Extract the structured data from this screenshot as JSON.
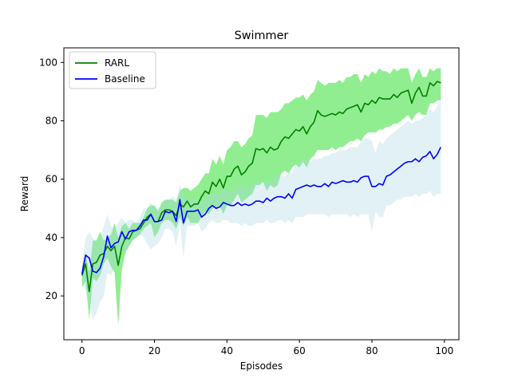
{
  "chart_data": {
    "type": "line",
    "title": "Swimmer",
    "xlabel": "Episodes",
    "ylabel": "Reward",
    "xlim": [
      -5,
      104
    ],
    "ylim": [
      5,
      105
    ],
    "xticks": [
      0,
      20,
      40,
      60,
      80,
      100
    ],
    "yticks": [
      20,
      40,
      60,
      80,
      100
    ],
    "grid": false,
    "legend_position": "top-left",
    "series": [
      {
        "name": "RARL",
        "color": "#008000",
        "band_color": "#90ee90",
        "x": [
          0,
          1,
          2,
          3,
          4,
          5,
          6,
          7,
          8,
          9,
          10,
          11,
          12,
          13,
          14,
          15,
          16,
          17,
          18,
          19,
          20,
          21,
          22,
          23,
          24,
          25,
          26,
          27,
          28,
          29,
          30,
          31,
          32,
          33,
          34,
          35,
          36,
          37,
          38,
          39,
          40,
          41,
          42,
          43,
          44,
          45,
          46,
          47,
          48,
          49,
          50,
          51,
          52,
          53,
          54,
          55,
          56,
          57,
          58,
          59,
          60,
          61,
          62,
          63,
          64,
          65,
          66,
          67,
          68,
          69,
          70,
          71,
          72,
          73,
          74,
          75,
          76,
          77,
          78,
          79,
          80,
          81,
          82,
          83,
          84,
          85,
          86,
          87,
          88,
          89,
          90,
          91,
          92,
          93,
          94,
          95,
          96,
          97,
          98,
          99
        ],
        "mean": [
          27,
          31,
          21.5,
          31,
          31.5,
          34,
          34.5,
          37,
          35.5,
          37,
          30.5,
          37,
          40,
          39.5,
          42,
          42.5,
          43,
          45,
          47,
          48,
          45.5,
          45.5,
          48.5,
          49.5,
          49.5,
          49,
          47.5,
          51.5,
          50.5,
          52.5,
          50.5,
          51.5,
          51.5,
          54,
          56,
          55,
          59,
          57.5,
          60,
          57,
          61,
          61,
          63.5,
          64.5,
          61.5,
          62.5,
          64.5,
          65.5,
          70.5,
          70,
          70.5,
          69,
          71,
          70,
          70.5,
          73,
          74.5,
          74,
          75.5,
          77,
          76.5,
          78,
          75.5,
          78,
          79.5,
          83.5,
          82,
          81.5,
          82,
          82.5,
          82,
          83,
          82.5,
          84,
          84.5,
          85,
          85.5,
          83,
          86,
          85.5,
          87,
          86,
          88,
          87.5,
          87.5,
          87.5,
          89,
          88,
          89.5,
          90,
          90.5,
          86,
          89.5,
          91.5,
          88.5,
          88.5,
          93,
          92,
          93.5,
          93
        ],
        "lower": [
          23,
          25,
          12,
          26,
          25,
          27,
          31,
          33,
          30,
          28,
          10,
          29,
          35,
          37,
          39,
          40,
          41,
          43,
          44,
          45,
          40,
          42,
          45,
          46,
          46,
          45,
          43,
          47,
          44,
          47,
          45,
          45,
          45,
          47,
          49,
          48,
          50,
          50,
          51,
          48,
          51,
          51,
          53,
          55,
          52,
          53,
          54,
          55,
          58,
          58,
          59,
          56,
          58,
          57,
          58,
          62,
          63,
          62,
          64,
          65,
          64,
          66,
          64,
          67,
          68,
          70,
          70,
          70,
          70,
          71,
          70,
          71,
          71,
          72,
          73,
          73,
          74,
          73,
          75,
          76,
          76,
          76,
          77,
          77,
          78,
          78,
          79,
          79,
          80,
          81,
          82,
          80,
          82,
          83,
          82,
          82,
          86,
          86,
          87,
          87
        ],
        "upper": [
          30,
          35,
          28,
          39,
          39,
          42,
          39,
          40,
          41,
          45,
          40,
          44,
          45,
          43,
          45,
          45,
          45,
          47,
          50,
          51,
          51,
          49,
          52,
          53,
          53,
          53,
          52,
          56,
          57,
          57,
          56,
          57,
          58,
          60,
          62,
          62,
          67,
          65,
          68,
          65,
          70,
          71,
          73,
          73,
          71,
          72,
          74,
          75,
          82,
          82,
          82,
          81,
          83,
          83,
          83,
          84,
          86,
          86,
          87,
          88,
          88,
          89,
          87,
          89,
          90,
          94,
          93,
          92,
          93,
          93,
          93,
          94,
          93,
          95,
          95,
          96,
          96,
          93,
          96,
          95,
          97,
          96,
          98,
          97,
          97,
          96,
          98,
          97,
          98,
          98,
          98,
          93,
          96,
          98,
          95,
          95,
          98,
          97,
          98,
          98
        ]
      },
      {
        "name": "Baseline",
        "color": "#0000ff",
        "band_color": "#add8e6",
        "x": [
          0,
          1,
          2,
          3,
          4,
          5,
          6,
          7,
          8,
          9,
          10,
          11,
          12,
          13,
          14,
          15,
          16,
          17,
          18,
          19,
          20,
          21,
          22,
          23,
          24,
          25,
          26,
          27,
          28,
          29,
          30,
          31,
          32,
          33,
          34,
          35,
          36,
          37,
          38,
          39,
          40,
          41,
          42,
          43,
          44,
          45,
          46,
          47,
          48,
          49,
          50,
          51,
          52,
          53,
          54,
          55,
          56,
          57,
          58,
          59,
          60,
          61,
          62,
          63,
          64,
          65,
          66,
          67,
          68,
          69,
          70,
          71,
          72,
          73,
          74,
          75,
          76,
          77,
          78,
          79,
          80,
          81,
          82,
          83,
          84,
          85,
          86,
          87,
          88,
          89,
          90,
          91,
          92,
          93,
          94,
          95,
          96,
          97,
          98,
          99
        ],
        "mean": [
          27.5,
          34,
          33,
          28.5,
          28,
          29.5,
          33.5,
          40.5,
          36.5,
          38,
          38.5,
          42,
          39.5,
          42,
          42.5,
          42.5,
          44,
          46,
          46,
          48,
          45.5,
          45.5,
          46,
          49,
          48.5,
          49,
          45.5,
          53,
          45,
          49,
          49,
          49,
          49.5,
          47,
          48,
          50,
          51,
          50,
          50.5,
          52,
          51.5,
          51,
          51,
          52,
          51,
          51.5,
          51,
          51.5,
          52.5,
          52.5,
          52,
          53.5,
          52.5,
          53.5,
          54,
          54,
          53.5,
          55,
          53.5,
          56.5,
          57,
          57.5,
          58,
          57.5,
          58,
          57.5,
          57.5,
          58.5,
          57.5,
          59,
          58.5,
          59,
          59.5,
          59,
          59,
          59.5,
          59,
          60.5,
          61,
          61,
          57.5,
          57.5,
          58.5,
          58,
          61,
          61.5,
          62.5,
          63.5,
          64.5,
          65.5,
          66,
          66,
          67,
          66,
          67.5,
          68,
          69.5,
          67,
          68.5,
          71
        ],
        "lower": [
          25,
          22,
          17,
          12,
          14,
          18,
          20,
          28,
          27,
          30,
          31,
          36,
          34,
          38,
          39,
          40,
          41,
          40,
          38,
          36,
          37,
          38,
          40,
          43,
          43,
          42,
          37,
          45,
          33,
          44,
          44,
          44,
          45,
          42,
          43,
          45,
          46,
          45,
          45,
          46,
          46,
          45,
          45,
          45,
          44,
          45,
          44,
          44,
          45,
          45,
          45,
          46,
          45,
          45,
          46,
          46,
          45,
          46,
          45,
          47,
          47,
          47,
          48,
          48,
          48,
          48,
          48,
          48,
          47,
          48,
          48,
          48,
          48,
          48,
          47,
          48,
          47,
          48,
          48,
          48,
          42,
          49,
          47,
          47,
          51,
          51,
          52,
          53,
          53,
          54,
          54,
          54,
          55,
          54,
          55,
          55,
          56,
          54,
          55,
          55
        ],
        "upper": [
          30,
          40,
          42,
          40,
          38,
          40,
          44,
          48,
          44,
          43,
          45,
          47,
          45,
          46,
          46,
          45,
          47,
          50,
          50,
          52,
          50,
          50,
          51,
          53,
          53,
          54,
          53,
          58,
          55,
          53,
          53,
          53,
          53,
          52,
          53,
          55,
          55,
          55,
          55,
          57,
          56,
          56,
          56,
          58,
          57,
          58,
          57,
          58,
          59,
          59,
          58,
          60,
          59,
          61,
          61,
          61,
          61,
          63,
          62,
          65,
          66,
          67,
          67,
          66,
          67,
          67,
          67,
          68,
          68,
          69,
          69,
          70,
          70,
          70,
          71,
          71,
          71,
          73,
          74,
          74,
          73,
          69,
          73,
          72,
          74,
          75,
          76,
          77,
          78,
          79,
          80,
          79,
          80,
          80,
          81,
          82,
          84,
          83,
          85,
          87
        ]
      }
    ]
  }
}
